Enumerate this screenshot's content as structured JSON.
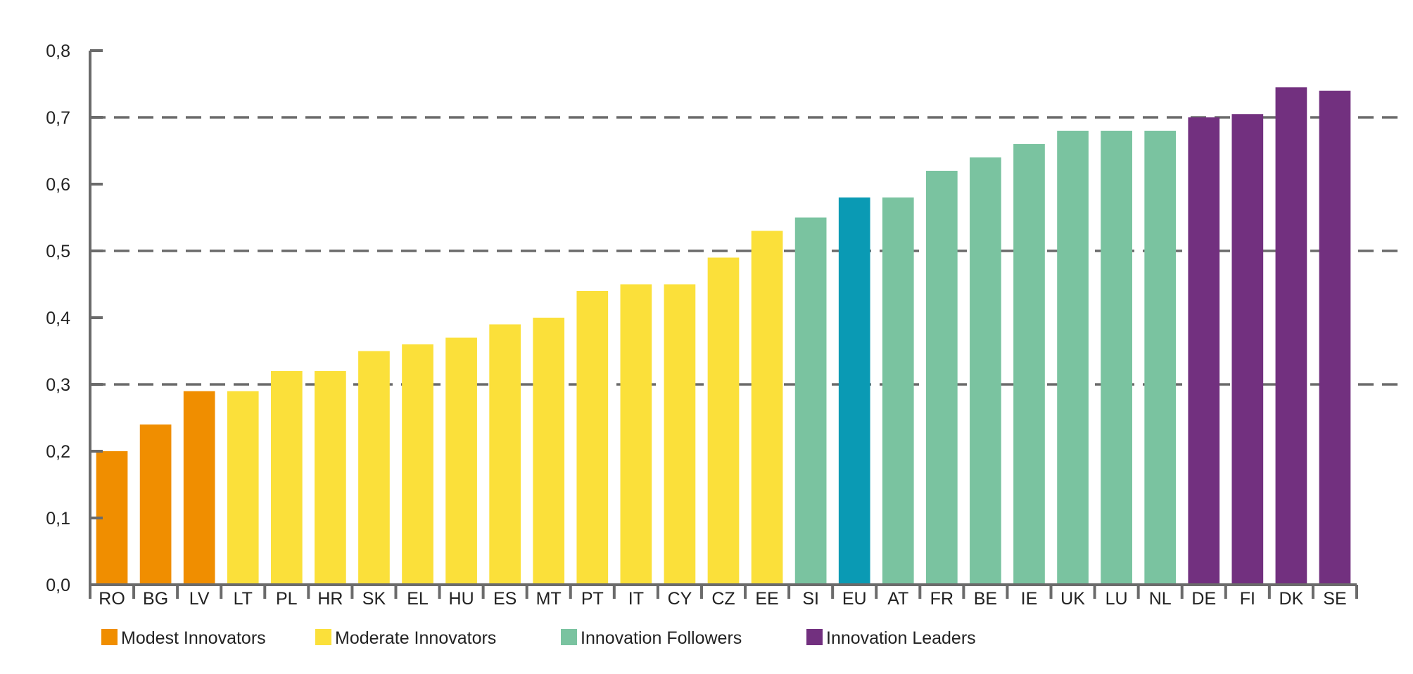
{
  "chart_data": {
    "type": "bar",
    "categories": [
      "RO",
      "BG",
      "LV",
      "LT",
      "PL",
      "HR",
      "SK",
      "EL",
      "HU",
      "ES",
      "MT",
      "PT",
      "IT",
      "CY",
      "CZ",
      "EE",
      "SI",
      "EU",
      "AT",
      "FR",
      "BE",
      "IE",
      "UK",
      "LU",
      "NL",
      "DE",
      "FI",
      "DK",
      "SE"
    ],
    "values": [
      0.2,
      0.24,
      0.29,
      0.29,
      0.32,
      0.32,
      0.35,
      0.36,
      0.37,
      0.39,
      0.4,
      0.44,
      0.45,
      0.45,
      0.49,
      0.53,
      0.55,
      0.58,
      0.58,
      0.62,
      0.64,
      0.66,
      0.68,
      0.68,
      0.68,
      0.7,
      0.705,
      0.745,
      0.74
    ],
    "groups": [
      "modest",
      "modest",
      "modest",
      "moderate",
      "moderate",
      "moderate",
      "moderate",
      "moderate",
      "moderate",
      "moderate",
      "moderate",
      "moderate",
      "moderate",
      "moderate",
      "moderate",
      "moderate",
      "follower",
      "eu",
      "follower",
      "follower",
      "follower",
      "follower",
      "follower",
      "follower",
      "follower",
      "leader",
      "leader",
      "leader",
      "leader"
    ],
    "title": "",
    "xlabel": "",
    "ylabel": "",
    "ylim": [
      0,
      0.8
    ],
    "yticks": [
      0.0,
      0.1,
      0.2,
      0.3,
      0.4,
      0.5,
      0.6,
      0.7,
      0.8
    ],
    "ytick_labels": [
      "0,0",
      "0,1",
      "0,2",
      "0,3",
      "0,4",
      "0,5",
      "0,6",
      "0,7",
      "0,8"
    ],
    "dashed_gridlines": [
      0.3,
      0.5,
      0.7
    ],
    "legend_position": "bottom-left",
    "legend": [
      {
        "key": "modest",
        "label": "Modest Innovators",
        "color": "#F08E00"
      },
      {
        "key": "moderate",
        "label": "Moderate Innovators",
        "color": "#FBE03A"
      },
      {
        "key": "follower",
        "label": "Innovation Followers",
        "color": "#7AC3A0"
      },
      {
        "key": "leader",
        "label": "Innovation Leaders",
        "color": "#72307F"
      }
    ],
    "colors": {
      "modest": "#F08E00",
      "moderate": "#FBE03A",
      "follower": "#7AC3A0",
      "eu": "#0A9AB4",
      "leader": "#72307F",
      "axis": "#6B6B6B",
      "grid": "#6B6B6B",
      "text": "#222222"
    }
  }
}
